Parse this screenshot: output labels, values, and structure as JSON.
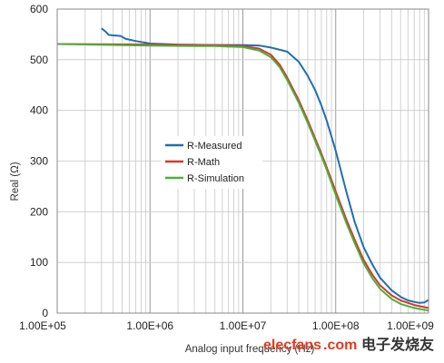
{
  "chart_data": {
    "type": "line",
    "xlabel": "Analog input frequency (Hz)",
    "ylabel": "Real (Ω)",
    "x_scale": "log",
    "xlim": [
      100000,
      1000000000
    ],
    "ylim": [
      0,
      600
    ],
    "x_tick_labels": [
      "1.00E+05",
      "1.00E+06",
      "1.00E+07",
      "1.00E+08",
      "1.00E+09"
    ],
    "x_tick_values": [
      100000,
      1000000,
      10000000,
      100000000,
      1000000000
    ],
    "y_ticks": [
      0,
      100,
      200,
      300,
      400,
      500,
      600
    ],
    "grid": true,
    "legend_position": "center-left",
    "series": [
      {
        "name": "R-Measured",
        "color": "#1f6fb2",
        "points": [
          [
            300000,
            562
          ],
          [
            330000,
            556
          ],
          [
            360000,
            549
          ],
          [
            400000,
            548
          ],
          [
            480000,
            547
          ],
          [
            550000,
            541
          ],
          [
            700000,
            537
          ],
          [
            1000000,
            532
          ],
          [
            2000000,
            530
          ],
          [
            5000000,
            529
          ],
          [
            10000000,
            529
          ],
          [
            15000000,
            528
          ],
          [
            20000000,
            524
          ],
          [
            30000000,
            516
          ],
          [
            40000000,
            496
          ],
          [
            50000000,
            468
          ],
          [
            60000000,
            440
          ],
          [
            70000000,
            410
          ],
          [
            80000000,
            380
          ],
          [
            100000000,
            320
          ],
          [
            130000000,
            240
          ],
          [
            160000000,
            180
          ],
          [
            200000000,
            130
          ],
          [
            250000000,
            95
          ],
          [
            300000000,
            70
          ],
          [
            400000000,
            45
          ],
          [
            500000000,
            32
          ],
          [
            600000000,
            25
          ],
          [
            700000000,
            22
          ],
          [
            800000000,
            20
          ],
          [
            900000000,
            21
          ],
          [
            1000000000,
            26
          ]
        ]
      },
      {
        "name": "R-Math",
        "color": "#d23a2a",
        "points": [
          [
            100000,
            531
          ],
          [
            1000000,
            530
          ],
          [
            5000000,
            529
          ],
          [
            10000000,
            527
          ],
          [
            15000000,
            522
          ],
          [
            20000000,
            510
          ],
          [
            25000000,
            490
          ],
          [
            30000000,
            465
          ],
          [
            40000000,
            420
          ],
          [
            50000000,
            380
          ],
          [
            60000000,
            345
          ],
          [
            70000000,
            315
          ],
          [
            80000000,
            288
          ],
          [
            100000000,
            240
          ],
          [
            130000000,
            185
          ],
          [
            160000000,
            145
          ],
          [
            200000000,
            105
          ],
          [
            250000000,
            75
          ],
          [
            300000000,
            55
          ],
          [
            400000000,
            35
          ],
          [
            500000000,
            25
          ],
          [
            700000000,
            16
          ],
          [
            1000000000,
            10
          ]
        ]
      },
      {
        "name": "R-Simulation",
        "color": "#4caf3a",
        "points": [
          [
            100000,
            531
          ],
          [
            1000000,
            528
          ],
          [
            3000000,
            527
          ],
          [
            5000000,
            527
          ],
          [
            10000000,
            525
          ],
          [
            15000000,
            518
          ],
          [
            20000000,
            505
          ],
          [
            25000000,
            485
          ],
          [
            30000000,
            460
          ],
          [
            40000000,
            415
          ],
          [
            50000000,
            375
          ],
          [
            60000000,
            340
          ],
          [
            70000000,
            310
          ],
          [
            80000000,
            283
          ],
          [
            100000000,
            233
          ],
          [
            130000000,
            178
          ],
          [
            160000000,
            138
          ],
          [
            200000000,
            98
          ],
          [
            250000000,
            68
          ],
          [
            300000000,
            48
          ],
          [
            400000000,
            28
          ],
          [
            500000000,
            18
          ],
          [
            700000000,
            10
          ],
          [
            1000000000,
            5
          ]
        ]
      }
    ]
  },
  "watermark": {
    "site": "elecfans",
    "domain": ".com",
    "cn_text": "电子发烧友"
  }
}
